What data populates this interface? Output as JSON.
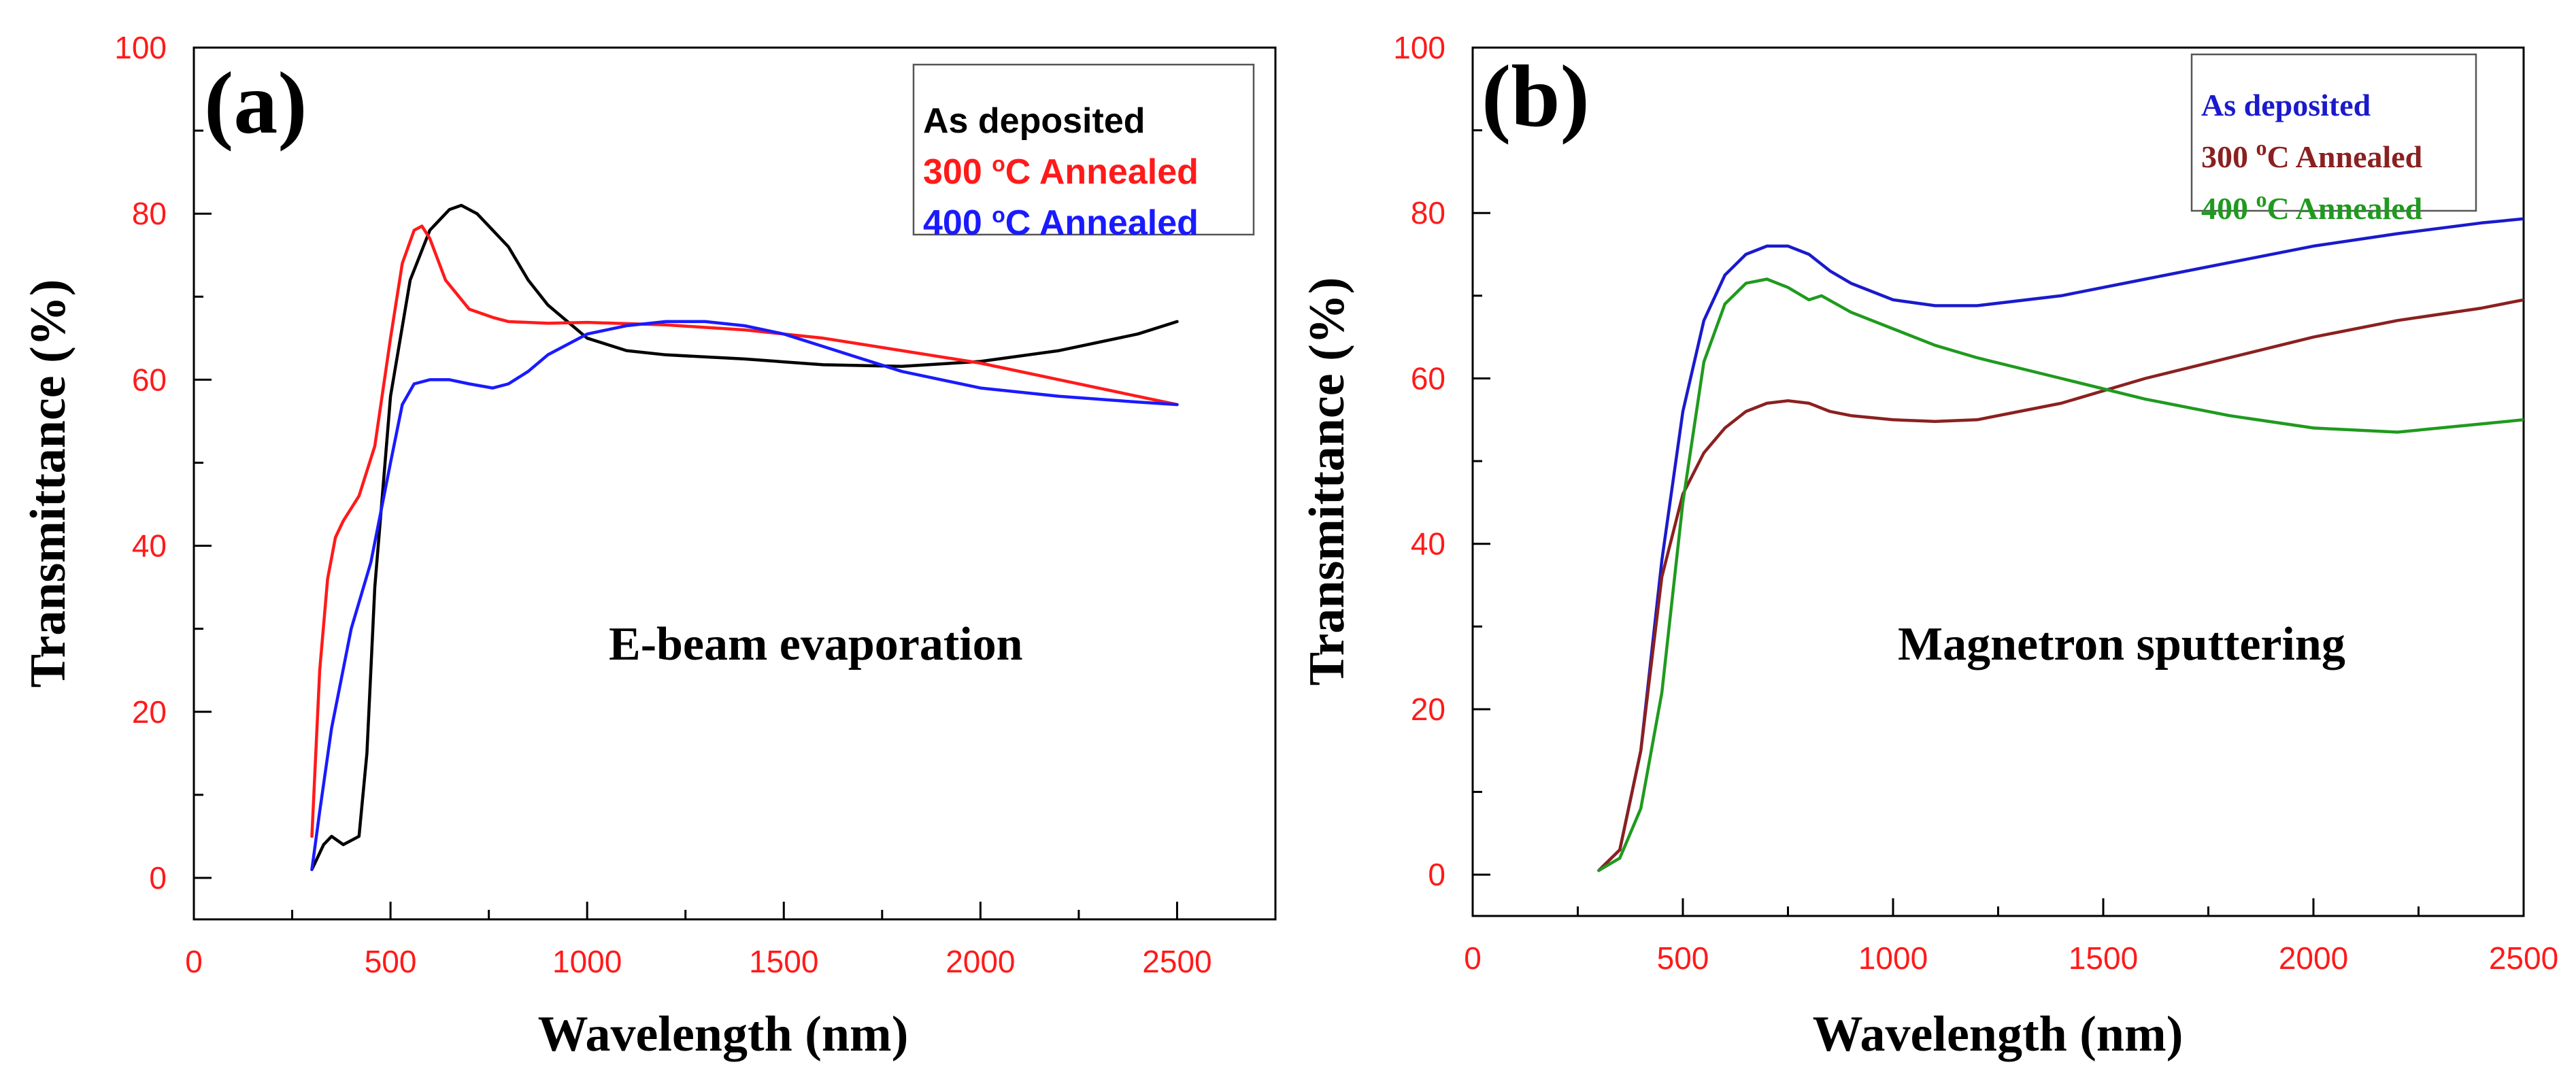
{
  "chart_data": [
    {
      "type": "line",
      "panel_label": "(a)",
      "annotation": "E-beam evaporation",
      "xlabel": "Wavelength (nm)",
      "ylabel": "Transmittance (%)",
      "xlim": [
        0,
        2750
      ],
      "ylim": [
        -5,
        100
      ],
      "x_ticks": [
        0,
        500,
        1000,
        1500,
        2000,
        2500
      ],
      "x_tick_labels": [
        "0",
        "500",
        "1000",
        "1500",
        "2000",
        "2500"
      ],
      "y_ticks": [
        0,
        20,
        40,
        60,
        80,
        100
      ],
      "y_tick_labels": [
        "0",
        "20",
        "40",
        "60",
        "80",
        "100"
      ],
      "legend_position": "top-right",
      "series": [
        {
          "name": "As deposited",
          "name_main": "As deposited",
          "name_sup": "",
          "name_tail": "",
          "color": "#000000",
          "x": [
            300,
            330,
            350,
            380,
            420,
            440,
            460,
            500,
            550,
            600,
            650,
            680,
            720,
            760,
            800,
            850,
            900,
            1000,
            1100,
            1200,
            1400,
            1600,
            1800,
            2000,
            2200,
            2400,
            2500
          ],
          "y": [
            1,
            4,
            5,
            4,
            5,
            15,
            35,
            58,
            72,
            78,
            80.5,
            81,
            80,
            78,
            76,
            72,
            69,
            65,
            63.5,
            63,
            62.5,
            61.8,
            61.6,
            62.2,
            63.5,
            65.5,
            67
          ]
        },
        {
          "name": "300 °C Annealed",
          "name_main": "300 ",
          "name_sup": "o",
          "name_tail": "C Annealed",
          "color": "#ff1a1a",
          "x": [
            300,
            320,
            340,
            360,
            380,
            420,
            460,
            500,
            530,
            560,
            580,
            600,
            640,
            700,
            760,
            800,
            900,
            1000,
            1200,
            1400,
            1600,
            1800,
            2000,
            2200,
            2400,
            2500
          ],
          "y": [
            5,
            25,
            36,
            41,
            43,
            46,
            52,
            65,
            74,
            78,
            78.5,
            77,
            72,
            68.5,
            67.5,
            67,
            66.8,
            66.9,
            66.6,
            66,
            65,
            63.5,
            62,
            60,
            58,
            57
          ]
        },
        {
          "name": "400 °C Annealed",
          "name_main": "400 ",
          "name_sup": "o",
          "name_tail": "C Annealed",
          "color": "#1a1aff",
          "x": [
            300,
            320,
            350,
            400,
            450,
            500,
            530,
            560,
            600,
            650,
            700,
            760,
            800,
            850,
            900,
            1000,
            1100,
            1200,
            1300,
            1400,
            1500,
            1600,
            1800,
            2000,
            2200,
            2400,
            2500
          ],
          "y": [
            1,
            8,
            18,
            30,
            38,
            50,
            57,
            59.5,
            60,
            60,
            59.5,
            59,
            59.5,
            61,
            63,
            65.5,
            66.5,
            67,
            67,
            66.5,
            65.5,
            64,
            61,
            59,
            58,
            57.3,
            57
          ]
        }
      ]
    },
    {
      "type": "line",
      "panel_label": "(b)",
      "annotation": "Magnetron sputtering",
      "xlabel": "Wavelength (nm)",
      "ylabel": "Transmittance (%)",
      "xlim": [
        0,
        2500
      ],
      "ylim": [
        -5,
        100
      ],
      "x_ticks": [
        0,
        500,
        1000,
        1500,
        2000,
        2500
      ],
      "x_tick_labels": [
        "0",
        "500",
        "1000",
        "1500",
        "2000",
        "2500"
      ],
      "y_ticks": [
        0,
        20,
        40,
        60,
        80,
        100
      ],
      "y_tick_labels": [
        "0",
        "20",
        "40",
        "60",
        "80",
        "100"
      ],
      "legend_position": "top-right",
      "series": [
        {
          "name": "As deposited",
          "name_main": "As deposited",
          "name_sup": "",
          "name_tail": "",
          "color": "#1a1acc",
          "x": [
            300,
            350,
            400,
            450,
            500,
            550,
            600,
            650,
            700,
            750,
            800,
            850,
            900,
            1000,
            1100,
            1200,
            1400,
            1600,
            1800,
            2000,
            2200,
            2400,
            2500
          ],
          "y": [
            0.5,
            3,
            15,
            38,
            56,
            67,
            72.5,
            75,
            76,
            76,
            75,
            73,
            71.5,
            69.5,
            68.8,
            68.8,
            70,
            72,
            74,
            76,
            77.5,
            78.8,
            79.3
          ]
        },
        {
          "name": "300 °C Annealed",
          "name_main": "300 ",
          "name_sup": "o",
          "name_tail": "C Annealed",
          "color": "#8b2020",
          "x": [
            300,
            350,
            400,
            450,
            500,
            550,
            600,
            650,
            700,
            750,
            800,
            850,
            900,
            1000,
            1100,
            1200,
            1400,
            1600,
            1800,
            2000,
            2200,
            2400,
            2500
          ],
          "y": [
            0.5,
            3,
            15,
            36,
            46,
            51,
            54,
            56,
            57,
            57.3,
            57,
            56,
            55.5,
            55,
            54.8,
            55,
            57,
            60,
            62.5,
            65,
            67,
            68.5,
            69.5
          ]
        },
        {
          "name": "400 °C Annealed",
          "name_main": "400 ",
          "name_sup": "o",
          "name_tail": "C Annealed",
          "color": "#1f9a1f",
          "x": [
            300,
            350,
            400,
            450,
            500,
            550,
            600,
            650,
            700,
            750,
            800,
            830,
            900,
            1000,
            1100,
            1200,
            1400,
            1600,
            1800,
            2000,
            2200,
            2400,
            2500
          ],
          "y": [
            0.5,
            2,
            8,
            22,
            45,
            62,
            69,
            71.5,
            72,
            71,
            69.5,
            70,
            68,
            66,
            64,
            62.5,
            60,
            57.5,
            55.5,
            54,
            53.5,
            54.5,
            55
          ]
        }
      ]
    }
  ]
}
